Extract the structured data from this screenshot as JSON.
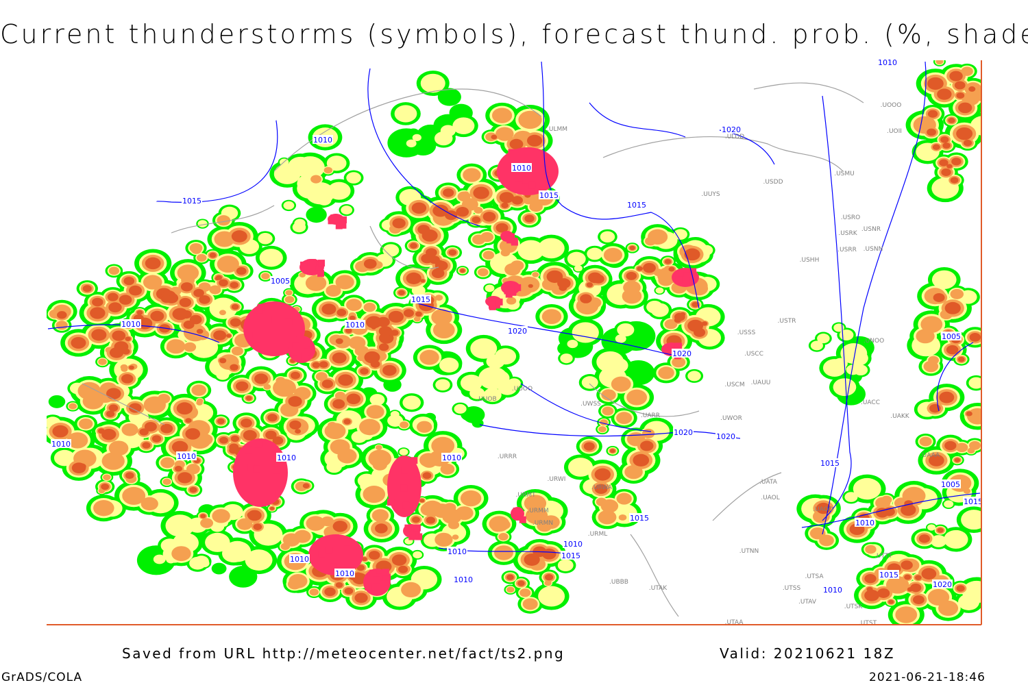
{
  "title": "Current thunderstorms (symbols), forecast thund. prob. (%, shaded)",
  "footer": {
    "source": "Saved from URL http://meteocenter.net/fact/ts2.png",
    "valid": "Valid: 20210621 18Z",
    "software": "GrADS/COLA",
    "timestamp": "2021-06-21-18:46"
  },
  "colors": {
    "prob_low": "#00f000",
    "prob_mid": "#ffff99",
    "prob_high": "#f5a050",
    "prob_very_high": "#e05a28",
    "thunderstorm_symbols": "#ff3366",
    "isobars": "#0000ff",
    "coastlines": "#a0a0a0",
    "frame": "#e05a28"
  },
  "isobar_labels": [
    "1010",
    "1015",
    "1010",
    "1015",
    "1020",
    "1010",
    "1015",
    "1005",
    "1015",
    "1010",
    "1010",
    "1020",
    "1020",
    "1005",
    "1010",
    "1010",
    "1010",
    "1010",
    "1020",
    "1020",
    "1015",
    "1005",
    "1015",
    "1010",
    "1015",
    "1010",
    "1015",
    "1010",
    "1010",
    "1010",
    "1010",
    "1015",
    "1020",
    "1010"
  ],
  "station_labels": [
    "ULMM",
    "UUYS",
    "USDD",
    "USMU",
    "USRO",
    "USNR",
    "USRK",
    "USRR",
    "USNN",
    "USHH",
    "USTR",
    "USSS",
    "USCC",
    "USCM",
    "UAUU",
    "UWOR",
    "UARR",
    "UWSS",
    "URWA",
    "URWI",
    "URRR",
    "UATA",
    "UAOL",
    "UAOO",
    "UTNN",
    "UTAK",
    "UBBB",
    "UTAA",
    "URML",
    "URMM",
    "URMN",
    "URMT",
    "UUOO",
    "UUOB",
    "UOOO",
    "UOII",
    "UNOO",
    "UAKK",
    "UACC",
    "UAAA",
    "UTTT",
    "UTSA",
    "UTSS",
    "UTAV",
    "UTST",
    "UTSK",
    "ULDD"
  ]
}
